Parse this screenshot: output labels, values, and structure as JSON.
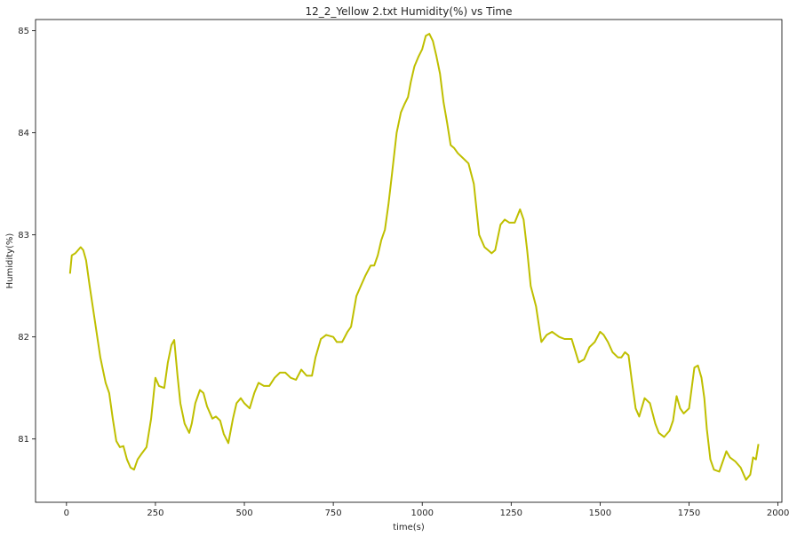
{
  "chart_data": {
    "type": "line",
    "title": "12_2_Yellow 2.txt  Humidity(%) vs Time",
    "xlabel": "time(s)",
    "ylabel": "Humidity(%)",
    "xlim": [
      -87,
      2011
    ],
    "ylim": [
      80.38,
      85.11
    ],
    "xticks": [
      0,
      250,
      500,
      750,
      1000,
      1250,
      1500,
      1750,
      2000
    ],
    "yticks": [
      81,
      82,
      83,
      84,
      85
    ],
    "xtick_labels": [
      "0",
      "250",
      "500",
      "750",
      "1000",
      "1250",
      "1500",
      "1750",
      "2000"
    ],
    "ytick_labels": [
      "81",
      "82",
      "83",
      "84",
      "85"
    ],
    "grid": false,
    "series": [
      {
        "color": "#bfbf00",
        "x": [
          10,
          15,
          25,
          40,
          47,
          55,
          65,
          80,
          95,
          110,
          120,
          130,
          140,
          150,
          160,
          170,
          180,
          190,
          200,
          210,
          225,
          238,
          250,
          260,
          275,
          285,
          295,
          303,
          312,
          320,
          332,
          345,
          352,
          362,
          375,
          385,
          395,
          410,
          420,
          432,
          442,
          455,
          468,
          478,
          490,
          500,
          515,
          528,
          540,
          555,
          570,
          585,
          600,
          615,
          630,
          645,
          660,
          675,
          690,
          700,
          715,
          730,
          750,
          760,
          775,
          790,
          800,
          815,
          825,
          840,
          855,
          865,
          875,
          885,
          895,
          905,
          915,
          928,
          940,
          950,
          960,
          968,
          978,
          990,
          1000,
          1010,
          1020,
          1030,
          1040,
          1050,
          1060,
          1070,
          1080,
          1090,
          1100,
          1115,
          1130,
          1145,
          1160,
          1175,
          1185,
          1195,
          1205,
          1220,
          1232,
          1245,
          1260,
          1275,
          1285,
          1295,
          1305,
          1320,
          1335,
          1350,
          1365,
          1385,
          1400,
          1420,
          1440,
          1455,
          1470,
          1485,
          1500,
          1510,
          1522,
          1535,
          1550,
          1560,
          1570,
          1580,
          1590,
          1600,
          1610,
          1625,
          1640,
          1655,
          1665,
          1680,
          1695,
          1705,
          1715,
          1725,
          1735,
          1750,
          1765,
          1775,
          1785,
          1793,
          1800,
          1810,
          1820,
          1835,
          1845,
          1855,
          1865,
          1880,
          1895,
          1910,
          1922,
          1930,
          1938,
          1945
        ],
        "y": [
          82.62,
          82.8,
          82.82,
          82.88,
          82.85,
          82.75,
          82.5,
          82.15,
          81.8,
          81.55,
          81.45,
          81.2,
          80.98,
          80.92,
          80.93,
          80.8,
          80.72,
          80.7,
          80.8,
          80.85,
          80.92,
          81.2,
          81.6,
          81.52,
          81.5,
          81.75,
          81.92,
          81.97,
          81.62,
          81.35,
          81.15,
          81.06,
          81.15,
          81.35,
          81.48,
          81.45,
          81.32,
          81.2,
          81.22,
          81.18,
          81.05,
          80.96,
          81.2,
          81.35,
          81.4,
          81.35,
          81.3,
          81.45,
          81.55,
          81.52,
          81.52,
          81.6,
          81.65,
          81.65,
          81.6,
          81.58,
          81.68,
          81.62,
          81.62,
          81.8,
          81.98,
          82.02,
          82.0,
          81.95,
          81.95,
          82.05,
          82.1,
          82.4,
          82.48,
          82.6,
          82.7,
          82.7,
          82.8,
          82.95,
          83.05,
          83.3,
          83.6,
          84.0,
          84.2,
          84.28,
          84.35,
          84.5,
          84.65,
          84.75,
          84.82,
          84.95,
          84.97,
          84.9,
          84.75,
          84.58,
          84.3,
          84.1,
          83.88,
          83.85,
          83.8,
          83.75,
          83.7,
          83.5,
          83.0,
          82.88,
          82.85,
          82.82,
          82.85,
          83.1,
          83.15,
          83.12,
          83.12,
          83.25,
          83.15,
          82.85,
          82.5,
          82.3,
          81.95,
          82.02,
          82.05,
          82.0,
          81.98,
          81.98,
          81.75,
          81.78,
          81.9,
          81.95,
          82.05,
          82.02,
          81.95,
          81.85,
          81.8,
          81.8,
          81.85,
          81.82,
          81.55,
          81.3,
          81.22,
          81.4,
          81.35,
          81.15,
          81.06,
          81.02,
          81.08,
          81.18,
          81.42,
          81.3,
          81.25,
          81.3,
          81.7,
          81.72,
          81.6,
          81.4,
          81.1,
          80.8,
          80.7,
          80.68,
          80.78,
          80.88,
          80.82,
          80.78,
          80.72,
          80.6,
          80.65,
          80.82,
          80.8,
          80.95
        ]
      }
    ]
  }
}
